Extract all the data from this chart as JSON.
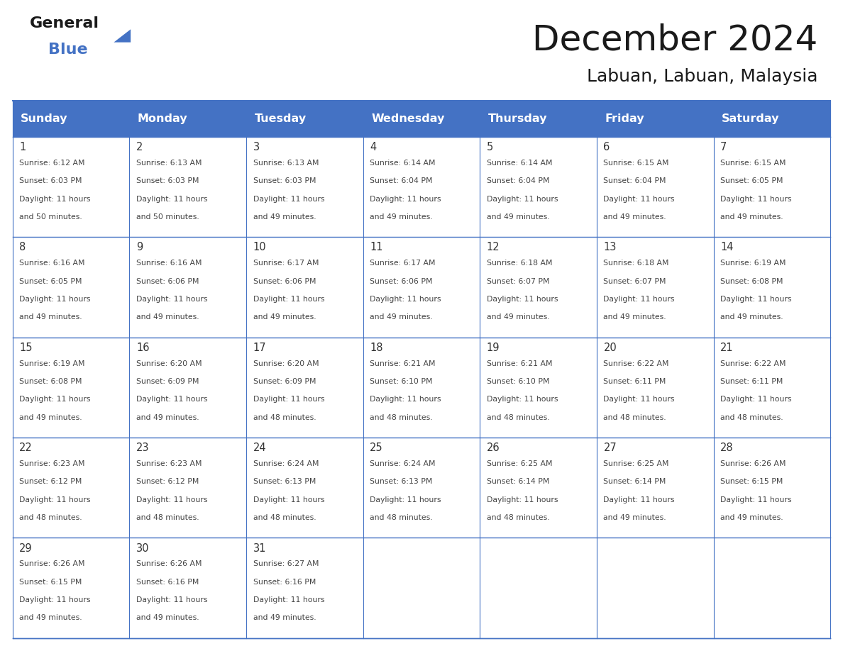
{
  "title": "December 2024",
  "subtitle": "Labuan, Labuan, Malaysia",
  "header_bg_color": "#4472C4",
  "header_text_color": "#FFFFFF",
  "cell_bg_color": "#FFFFFF",
  "border_color": "#4472C4",
  "day_number_color": "#333333",
  "cell_text_color": "#555555",
  "days_of_week": [
    "Sunday",
    "Monday",
    "Tuesday",
    "Wednesday",
    "Thursday",
    "Friday",
    "Saturday"
  ],
  "weeks": [
    [
      {
        "day": 1,
        "sunrise": "6:12 AM",
        "sunset": "6:03 PM",
        "daylight": "11 hours and 50 minutes."
      },
      {
        "day": 2,
        "sunrise": "6:13 AM",
        "sunset": "6:03 PM",
        "daylight": "11 hours and 50 minutes."
      },
      {
        "day": 3,
        "sunrise": "6:13 AM",
        "sunset": "6:03 PM",
        "daylight": "11 hours and 49 minutes."
      },
      {
        "day": 4,
        "sunrise": "6:14 AM",
        "sunset": "6:04 PM",
        "daylight": "11 hours and 49 minutes."
      },
      {
        "day": 5,
        "sunrise": "6:14 AM",
        "sunset": "6:04 PM",
        "daylight": "11 hours and 49 minutes."
      },
      {
        "day": 6,
        "sunrise": "6:15 AM",
        "sunset": "6:04 PM",
        "daylight": "11 hours and 49 minutes."
      },
      {
        "day": 7,
        "sunrise": "6:15 AM",
        "sunset": "6:05 PM",
        "daylight": "11 hours and 49 minutes."
      }
    ],
    [
      {
        "day": 8,
        "sunrise": "6:16 AM",
        "sunset": "6:05 PM",
        "daylight": "11 hours and 49 minutes."
      },
      {
        "day": 9,
        "sunrise": "6:16 AM",
        "sunset": "6:06 PM",
        "daylight": "11 hours and 49 minutes."
      },
      {
        "day": 10,
        "sunrise": "6:17 AM",
        "sunset": "6:06 PM",
        "daylight": "11 hours and 49 minutes."
      },
      {
        "day": 11,
        "sunrise": "6:17 AM",
        "sunset": "6:06 PM",
        "daylight": "11 hours and 49 minutes."
      },
      {
        "day": 12,
        "sunrise": "6:18 AM",
        "sunset": "6:07 PM",
        "daylight": "11 hours and 49 minutes."
      },
      {
        "day": 13,
        "sunrise": "6:18 AM",
        "sunset": "6:07 PM",
        "daylight": "11 hours and 49 minutes."
      },
      {
        "day": 14,
        "sunrise": "6:19 AM",
        "sunset": "6:08 PM",
        "daylight": "11 hours and 49 minutes."
      }
    ],
    [
      {
        "day": 15,
        "sunrise": "6:19 AM",
        "sunset": "6:08 PM",
        "daylight": "11 hours and 49 minutes."
      },
      {
        "day": 16,
        "sunrise": "6:20 AM",
        "sunset": "6:09 PM",
        "daylight": "11 hours and 49 minutes."
      },
      {
        "day": 17,
        "sunrise": "6:20 AM",
        "sunset": "6:09 PM",
        "daylight": "11 hours and 48 minutes."
      },
      {
        "day": 18,
        "sunrise": "6:21 AM",
        "sunset": "6:10 PM",
        "daylight": "11 hours and 48 minutes."
      },
      {
        "day": 19,
        "sunrise": "6:21 AM",
        "sunset": "6:10 PM",
        "daylight": "11 hours and 48 minutes."
      },
      {
        "day": 20,
        "sunrise": "6:22 AM",
        "sunset": "6:11 PM",
        "daylight": "11 hours and 48 minutes."
      },
      {
        "day": 21,
        "sunrise": "6:22 AM",
        "sunset": "6:11 PM",
        "daylight": "11 hours and 48 minutes."
      }
    ],
    [
      {
        "day": 22,
        "sunrise": "6:23 AM",
        "sunset": "6:12 PM",
        "daylight": "11 hours and 48 minutes."
      },
      {
        "day": 23,
        "sunrise": "6:23 AM",
        "sunset": "6:12 PM",
        "daylight": "11 hours and 48 minutes."
      },
      {
        "day": 24,
        "sunrise": "6:24 AM",
        "sunset": "6:13 PM",
        "daylight": "11 hours and 48 minutes."
      },
      {
        "day": 25,
        "sunrise": "6:24 AM",
        "sunset": "6:13 PM",
        "daylight": "11 hours and 48 minutes."
      },
      {
        "day": 26,
        "sunrise": "6:25 AM",
        "sunset": "6:14 PM",
        "daylight": "11 hours and 48 minutes."
      },
      {
        "day": 27,
        "sunrise": "6:25 AM",
        "sunset": "6:14 PM",
        "daylight": "11 hours and 49 minutes."
      },
      {
        "day": 28,
        "sunrise": "6:26 AM",
        "sunset": "6:15 PM",
        "daylight": "11 hours and 49 minutes."
      }
    ],
    [
      {
        "day": 29,
        "sunrise": "6:26 AM",
        "sunset": "6:15 PM",
        "daylight": "11 hours and 49 minutes."
      },
      {
        "day": 30,
        "sunrise": "6:26 AM",
        "sunset": "6:16 PM",
        "daylight": "11 hours and 49 minutes."
      },
      {
        "day": 31,
        "sunrise": "6:27 AM",
        "sunset": "6:16 PM",
        "daylight": "11 hours and 49 minutes."
      },
      null,
      null,
      null,
      null
    ]
  ]
}
